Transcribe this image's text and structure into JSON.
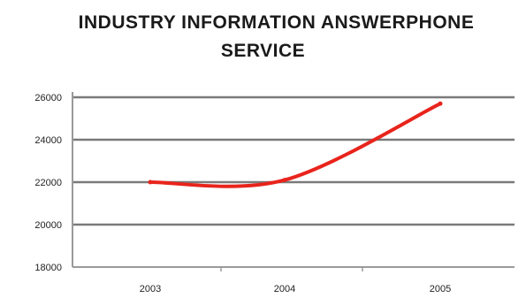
{
  "chart_data": {
    "type": "line",
    "title": "INDUSTRY INFORMATION ANSWERPHONE SERVICE",
    "title_lines": [
      "INDUSTRY INFORMATION ANSWERPHONE",
      "SERVICE"
    ],
    "xlabel": "",
    "ylabel": "",
    "x": [
      "2003",
      "2004",
      "2005"
    ],
    "series": [
      {
        "color": "#e8241c",
        "values": [
          22000,
          22100,
          25700
        ]
      }
    ],
    "y_ticks": [
      "26000",
      "24000",
      "22000",
      "20000",
      "18000"
    ],
    "y_tick_values": [
      26000,
      24000,
      22000,
      20000,
      18000
    ],
    "ylim": [
      18000,
      26000
    ],
    "grid": true,
    "legend": "none"
  }
}
